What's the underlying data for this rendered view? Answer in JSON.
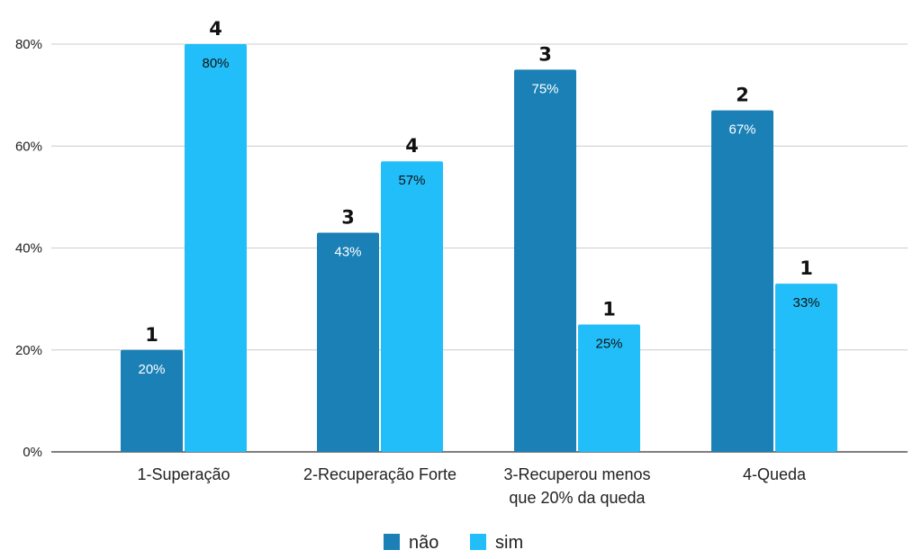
{
  "chart_data": {
    "type": "bar",
    "categories": [
      "1-Superação",
      "2-Recuperação Forte",
      "3-Recuperou menos que 20% da queda",
      "4-Queda"
    ],
    "category_label_lines": [
      [
        "1-Superação"
      ],
      [
        "2-Recuperação Forte"
      ],
      [
        "3-Recuperou menos",
        "que 20% da queda"
      ],
      [
        "4-Queda"
      ]
    ],
    "series": [
      {
        "name": "não",
        "color": "#1a80b6",
        "values": [
          20,
          43,
          75,
          67
        ],
        "percent_labels": [
          "20%",
          "43%",
          "75%",
          "67%"
        ],
        "counts": [
          "1",
          "3",
          "3",
          "2"
        ],
        "label_color": "#ffffff"
      },
      {
        "name": "sim",
        "color": "#22bef9",
        "values": [
          80,
          57,
          25,
          33
        ],
        "percent_labels": [
          "80%",
          "57%",
          "25%",
          "33%"
        ],
        "counts": [
          "4",
          "4",
          "1",
          "1"
        ],
        "label_color": "#111111"
      }
    ],
    "ylim": [
      0,
      80
    ],
    "yticks": [
      0,
      20,
      40,
      60,
      80
    ],
    "ytick_labels": [
      "0%",
      "20%",
      "40%",
      "60%",
      "80%"
    ],
    "title": "",
    "xlabel": "",
    "ylabel": "",
    "grid": true,
    "legend_position": "bottom"
  }
}
